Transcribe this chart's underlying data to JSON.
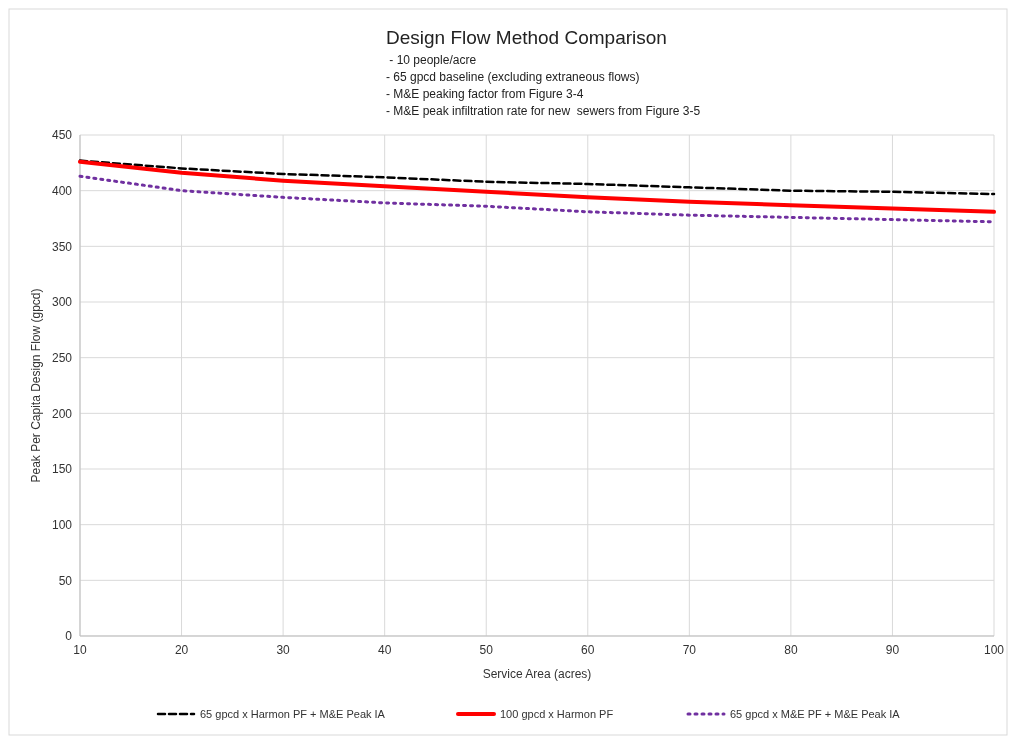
{
  "chart_data": {
    "type": "line",
    "title": "Design Flow Method Comparison",
    "subtitle": " - 10 people/acre\n- 65 gpcd baseline (excluding extraneous flows)\n- M&E peaking factor from Figure 3-4\n- M&E peak infiltration rate for new  sewers from Figure 3-5",
    "xlabel": "Service Area (acres)",
    "ylabel": "Peak Per Capita Design Flow (gpcd)",
    "x": [
      10,
      20,
      30,
      40,
      50,
      60,
      70,
      80,
      90,
      100
    ],
    "series": [
      {
        "name": "65 gpcd x Harmon PF + M&E Peak IA",
        "color": "#000000",
        "line_style": "dashed",
        "values": [
          427,
          420,
          415,
          412,
          408,
          406,
          403,
          400,
          399,
          397
        ]
      },
      {
        "name": "100 gpcd x Harmon PF",
        "color": "#ff0000",
        "line_style": "solid",
        "values": [
          426,
          416,
          409,
          404,
          399,
          394,
          390,
          387,
          384,
          381
        ]
      },
      {
        "name": "65 gpcd x M&E PF + M&E Peak IA",
        "color": "#7030a0",
        "line_style": "dotted",
        "values": [
          413,
          400,
          394,
          389,
          386,
          381,
          378,
          376,
          374,
          372
        ]
      }
    ],
    "xlim": [
      10,
      100
    ],
    "xticks": [
      10,
      20,
      30,
      40,
      50,
      60,
      70,
      80,
      90,
      100
    ],
    "ylim": [
      0,
      450
    ],
    "yticks": [
      0,
      50,
      100,
      150,
      200,
      250,
      300,
      350,
      400,
      450
    ],
    "grid": true,
    "legend": "bottom",
    "marker": "none"
  }
}
